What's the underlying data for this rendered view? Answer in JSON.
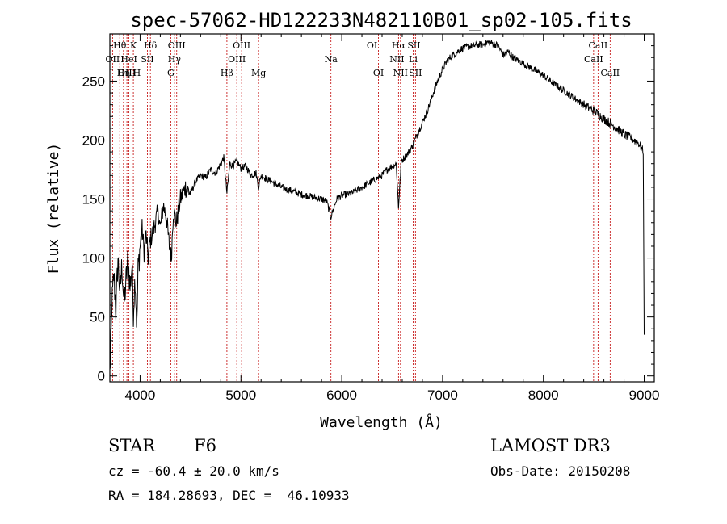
{
  "chart_data": {
    "type": "line",
    "title": "spec-57062-HD122233N482110B01_sp02-105.fits",
    "xlabel": "Wavelength (Å)",
    "ylabel": "Flux (relative)",
    "xlim": [
      3700,
      9100
    ],
    "ylim": [
      -5,
      290
    ],
    "xticks": [
      4000,
      5000,
      6000,
      7000,
      8000,
      9000
    ],
    "yticks": [
      0,
      50,
      100,
      150,
      200,
      250
    ],
    "series": [
      {
        "name": "flux",
        "color": "#000000",
        "points": [
          [
            3700,
            5
          ],
          [
            3710,
            25
          ],
          [
            3720,
            60
          ],
          [
            3740,
            85
          ],
          [
            3760,
            55
          ],
          [
            3780,
            100
          ],
          [
            3800,
            70
          ],
          [
            3820,
            95
          ],
          [
            3840,
            60
          ],
          [
            3860,
            80
          ],
          [
            3880,
            100
          ],
          [
            3900,
            75
          ],
          [
            3920,
            95
          ],
          [
            3933,
            55
          ],
          [
            3950,
            85
          ],
          [
            3968,
            40
          ],
          [
            3980,
            90
          ],
          [
            4000,
            110
          ],
          [
            4020,
            125
          ],
          [
            4040,
            105
          ],
          [
            4060,
            120
          ],
          [
            4080,
            100
          ],
          [
            4100,
            115
          ],
          [
            4120,
            120
          ],
          [
            4150,
            130
          ],
          [
            4180,
            140
          ],
          [
            4200,
            125
          ],
          [
            4230,
            145
          ],
          [
            4260,
            135
          ],
          [
            4290,
            110
          ],
          [
            4310,
            100
          ],
          [
            4330,
            140
          ],
          [
            4360,
            130
          ],
          [
            4400,
            150
          ],
          [
            4450,
            160
          ],
          [
            4500,
            155
          ],
          [
            4550,
            165
          ],
          [
            4600,
            170
          ],
          [
            4650,
            168
          ],
          [
            4700,
            175
          ],
          [
            4750,
            172
          ],
          [
            4800,
            180
          ],
          [
            4830,
            185
          ],
          [
            4861,
            155
          ],
          [
            4890,
            180
          ],
          [
            4920,
            178
          ],
          [
            4960,
            182
          ],
          [
            5000,
            176
          ],
          [
            5050,
            178
          ],
          [
            5100,
            170
          ],
          [
            5150,
            172
          ],
          [
            5175,
            160
          ],
          [
            5200,
            170
          ],
          [
            5300,
            165
          ],
          [
            5400,
            160
          ],
          [
            5500,
            157
          ],
          [
            5600,
            154
          ],
          [
            5700,
            152
          ],
          [
            5800,
            150
          ],
          [
            5850,
            148
          ],
          [
            5893,
            135
          ],
          [
            5950,
            150
          ],
          [
            6000,
            153
          ],
          [
            6100,
            155
          ],
          [
            6200,
            160
          ],
          [
            6300,
            165
          ],
          [
            6400,
            170
          ],
          [
            6450,
            175
          ],
          [
            6500,
            178
          ],
          [
            6540,
            180
          ],
          [
            6563,
            143
          ],
          [
            6590,
            182
          ],
          [
            6650,
            188
          ],
          [
            6700,
            195
          ],
          [
            6750,
            205
          ],
          [
            6800,
            215
          ],
          [
            6850,
            225
          ],
          [
            6900,
            238
          ],
          [
            6950,
            250
          ],
          [
            7000,
            260
          ],
          [
            7050,
            268
          ],
          [
            7100,
            272
          ],
          [
            7150,
            275
          ],
          [
            7200,
            278
          ],
          [
            7300,
            280
          ],
          [
            7400,
            281
          ],
          [
            7450,
            283
          ],
          [
            7500,
            282
          ],
          [
            7550,
            280
          ],
          [
            7600,
            272
          ],
          [
            7650,
            275
          ],
          [
            7700,
            270
          ],
          [
            7800,
            265
          ],
          [
            7900,
            260
          ],
          [
            8000,
            255
          ],
          [
            8100,
            248
          ],
          [
            8200,
            242
          ],
          [
            8300,
            236
          ],
          [
            8400,
            230
          ],
          [
            8500,
            225
          ],
          [
            8600,
            218
          ],
          [
            8700,
            212
          ],
          [
            8800,
            205
          ],
          [
            8900,
            200
          ],
          [
            8950,
            197
          ],
          [
            8990,
            190
          ],
          [
            9000,
            35
          ]
        ]
      }
    ],
    "spectral_lines": [
      {
        "label": "Hθ",
        "wavelength": 3798,
        "row": 1
      },
      {
        "label": "OII",
        "wavelength": 3727,
        "row": 2
      },
      {
        "label": "OIII",
        "wavelength": 3869,
        "row": 3
      },
      {
        "label": "K",
        "wavelength": 3933,
        "row": 1
      },
      {
        "label": "HeI",
        "wavelength": 3889,
        "row": 2
      },
      {
        "label": "Hη",
        "wavelength": 3835,
        "row": 3
      },
      {
        "label": "H",
        "wavelength": 3968,
        "row": 3
      },
      {
        "label": "Hδ",
        "wavelength": 4102,
        "row": 1
      },
      {
        "label": "SII",
        "wavelength": 4072,
        "row": 2
      },
      {
        "label": "OIII",
        "wavelength": 4363,
        "row": 1
      },
      {
        "label": "Hγ",
        "wavelength": 4340,
        "row": 2
      },
      {
        "label": "G",
        "wavelength": 4304,
        "row": 3
      },
      {
        "label": "Hβ",
        "wavelength": 4861,
        "row": 3
      },
      {
        "label": "OIII",
        "wavelength": 4959,
        "row": 2
      },
      {
        "label": "OIII",
        "wavelength": 5007,
        "row": 1
      },
      {
        "label": "Mg",
        "wavelength": 5175,
        "row": 3
      },
      {
        "label": "Na",
        "wavelength": 5893,
        "row": 2
      },
      {
        "label": "OI",
        "wavelength": 6300,
        "row": 1
      },
      {
        "label": "OI",
        "wavelength": 6364,
        "row": 3
      },
      {
        "label": "Hα",
        "wavelength": 6563,
        "row": 1
      },
      {
        "label": "NII",
        "wavelength": 6548,
        "row": 2
      },
      {
        "label": "NII",
        "wavelength": 6583,
        "row": 3
      },
      {
        "label": "SII",
        "wavelength": 6716,
        "row": 1
      },
      {
        "label": "Li",
        "wavelength": 6708,
        "row": 2
      },
      {
        "label": "SII",
        "wavelength": 6731,
        "row": 3
      },
      {
        "label": "CaII",
        "wavelength": 8542,
        "row": 1
      },
      {
        "label": "CaII",
        "wavelength": 8498,
        "row": 2
      },
      {
        "label": "CaII",
        "wavelength": 8662,
        "row": 3
      }
    ]
  },
  "info": {
    "class": "STAR",
    "subclass": "F6",
    "survey": "LAMOST DR3",
    "cz": "cz = -60.4 ± 20.0 km/s",
    "obs_date": "Obs-Date: 20150208",
    "coords": "RA = 184.28693, DEC =  46.10933"
  },
  "colors": {
    "line_marker": "#c00000",
    "spectrum": "#000000"
  }
}
